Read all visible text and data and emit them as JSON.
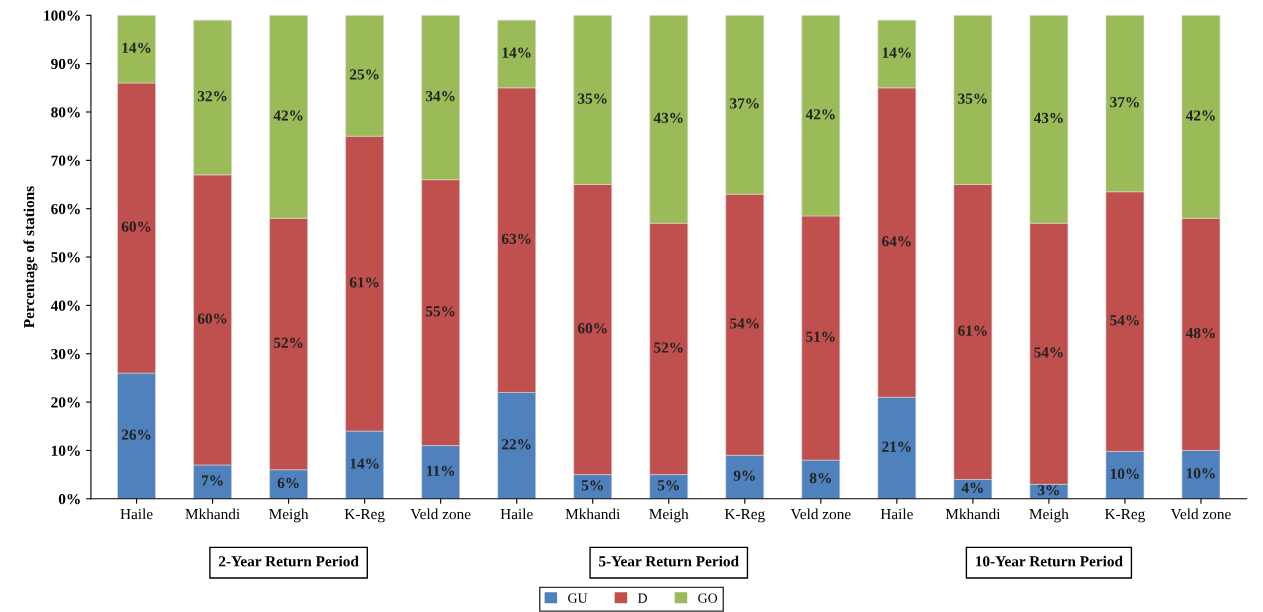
{
  "chart_data": {
    "type": "bar",
    "stacked": true,
    "ylabel": "Percentage of stations",
    "categories": [
      "Haile",
      "Mkhandi",
      "Meigh",
      "K-Reg",
      "Veld zone",
      "Haile",
      "Mkhandi",
      "Meigh",
      "K-Reg",
      "Veld zone",
      "Haile",
      "Mkhandi",
      "Meigh",
      "K-Reg",
      "Veld zone"
    ],
    "series": [
      {
        "name": "GU",
        "color": "#4f81bd",
        "values": [
          26,
          7,
          6,
          14,
          11,
          22,
          5,
          5,
          9,
          8,
          21,
          4,
          3,
          9.8,
          10
        ],
        "value_labels": [
          "26%",
          "7%",
          "6%",
          "14%",
          "11%",
          "22%",
          "5%",
          "5%",
          "9%",
          "8%",
          "21%",
          "4%",
          "3%",
          "10%",
          "10%"
        ]
      },
      {
        "name": "D",
        "color": "#c0504d",
        "values": [
          60,
          60,
          52,
          61,
          55,
          63,
          60,
          52,
          54,
          50.5,
          64,
          61,
          54,
          53.7,
          48
        ],
        "value_labels": [
          "60%",
          "60%",
          "52%",
          "61%",
          "55%",
          "63%",
          "60%",
          "52%",
          "54%",
          "51%",
          "64%",
          "61%",
          "54%",
          "54%",
          "48%"
        ]
      },
      {
        "name": "GO",
        "color": "#9bbb59",
        "values": [
          14,
          32,
          42,
          25,
          34,
          14,
          35,
          43,
          37,
          41.5,
          14,
          35,
          43,
          36.5,
          42
        ],
        "value_labels": [
          "14%",
          "32%",
          "42%",
          "25%",
          "34%",
          "14%",
          "35%",
          "43%",
          "37%",
          "42%",
          "14%",
          "35%",
          "43%",
          "37%",
          "42%"
        ]
      }
    ],
    "ylim": [
      0,
      100
    ],
    "yticks": [
      {
        "value": 0,
        "label": "0%"
      },
      {
        "value": 10,
        "label": "10%"
      },
      {
        "value": 20,
        "label": "20%"
      },
      {
        "value": 30,
        "label": "30%"
      },
      {
        "value": 40,
        "label": "40%"
      },
      {
        "value": 50,
        "label": "50%"
      },
      {
        "value": 60,
        "label": "60%"
      },
      {
        "value": 70,
        "label": "70%"
      },
      {
        "value": 80,
        "label": "80%"
      },
      {
        "value": 90,
        "label": "90%"
      },
      {
        "value": 100,
        "label": "100%"
      }
    ],
    "annotations": [
      "2-Year Return Period",
      "5-Year Return Period",
      "10-Year Return Period"
    ],
    "legend": "bottom",
    "grid": false
  }
}
